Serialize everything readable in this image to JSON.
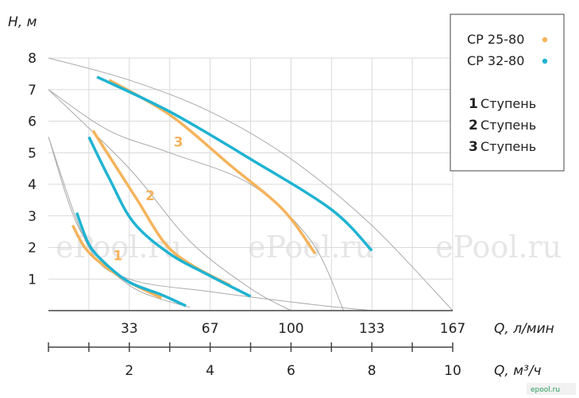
{
  "chart_data": {
    "type": "line",
    "ylabel": "H, м",
    "xlabel_top": "Q, л/мин",
    "xlabel_bottom": "Q, м³/ч",
    "x_unit": "m3/h",
    "xlim": [
      0,
      10
    ],
    "ylim": [
      0,
      8
    ],
    "y_ticks": [
      "1",
      "2",
      "3",
      "4",
      "5",
      "6",
      "7",
      "8"
    ],
    "x_ticks_top": [
      {
        "x": 2,
        "label": "33"
      },
      {
        "x": 4,
        "label": "67"
      },
      {
        "x": 6,
        "label": "100"
      },
      {
        "x": 8,
        "label": "133"
      },
      {
        "x": 10,
        "label": "167"
      }
    ],
    "x_ticks_bottom": [
      {
        "x": 2,
        "label": "2"
      },
      {
        "x": 4,
        "label": "4"
      },
      {
        "x": 6,
        "label": "6"
      },
      {
        "x": 8,
        "label": "8"
      },
      {
        "x": 10,
        "label": "10"
      }
    ],
    "grid": true,
    "legend_position": "top-right",
    "legend": {
      "models": [
        {
          "label": "CP 25-80",
          "color": "#f5b35b"
        },
        {
          "label": "CP 32-80",
          "color": "#1fb3d2"
        }
      ],
      "stages": [
        {
          "num": "1",
          "label": "Ступень"
        },
        {
          "num": "2",
          "label": "Ступень"
        },
        {
          "num": "3",
          "label": "Ступень"
        }
      ]
    },
    "series": [
      {
        "model": "CP 25-80",
        "stage": "1",
        "color": "#f5b35b",
        "points": [
          [
            0.6,
            2.7
          ],
          [
            0.9,
            2.0
          ],
          [
            1.3,
            1.5
          ],
          [
            2.0,
            0.9
          ],
          [
            2.8,
            0.4
          ]
        ]
      },
      {
        "model": "CP 32-80",
        "stage": "1",
        "color": "#1fb3d2",
        "points": [
          [
            0.7,
            3.1
          ],
          [
            1.0,
            2.1
          ],
          [
            1.4,
            1.5
          ],
          [
            2.0,
            0.9
          ],
          [
            2.8,
            0.5
          ],
          [
            3.4,
            0.15
          ]
        ]
      },
      {
        "model": "CP 25-80",
        "stage": "2",
        "color": "#f5b35b",
        "points": [
          [
            1.1,
            5.7
          ],
          [
            1.6,
            4.7
          ],
          [
            2.2,
            3.5
          ],
          [
            2.9,
            2.1
          ],
          [
            3.6,
            1.4
          ],
          [
            4.5,
            0.8
          ]
        ]
      },
      {
        "model": "CP 32-80",
        "stage": "2",
        "color": "#1fb3d2",
        "points": [
          [
            1.0,
            5.5
          ],
          [
            1.5,
            4.2
          ],
          [
            2.1,
            2.8
          ],
          [
            3.0,
            1.8
          ],
          [
            4.0,
            1.1
          ],
          [
            5.0,
            0.45
          ]
        ]
      },
      {
        "model": "CP 25-80",
        "stage": "3",
        "color": "#f5b35b",
        "points": [
          [
            1.5,
            7.3
          ],
          [
            3.0,
            6.2
          ],
          [
            4.5,
            4.6
          ],
          [
            5.8,
            3.2
          ],
          [
            6.6,
            1.8
          ]
        ]
      },
      {
        "model": "CP 32-80",
        "stage": "3",
        "color": "#1fb3d2",
        "points": [
          [
            1.2,
            7.4
          ],
          [
            3.0,
            6.3
          ],
          [
            5.0,
            4.8
          ],
          [
            7.0,
            3.2
          ],
          [
            8.0,
            1.9
          ]
        ]
      }
    ],
    "reference_curves": [
      {
        "color": "#aaaaaa",
        "points": [
          [
            0,
            8.0
          ],
          [
            2.0,
            7.3
          ],
          [
            4.0,
            6.3
          ],
          [
            6.0,
            4.8
          ],
          [
            8.0,
            2.7
          ],
          [
            10.0,
            0
          ]
        ]
      },
      {
        "color": "#aaaaaa",
        "points": [
          [
            0,
            7.0
          ],
          [
            1.5,
            5.7
          ],
          [
            3.0,
            5.0
          ],
          [
            5.0,
            4.0
          ],
          [
            6.5,
            2.2
          ],
          [
            7.3,
            0
          ]
        ]
      },
      {
        "color": "#aaaaaa",
        "points": [
          [
            0,
            7.0
          ],
          [
            2.0,
            4.5
          ],
          [
            3.5,
            2.2
          ],
          [
            5.0,
            0.7
          ],
          [
            6.0,
            0
          ]
        ]
      },
      {
        "color": "#aaaaaa",
        "points": [
          [
            0,
            5.5
          ],
          [
            0.8,
            2.5
          ],
          [
            2.0,
            0.8
          ],
          [
            3.5,
            0.1
          ]
        ]
      },
      {
        "color": "#aaaaaa",
        "points": [
          [
            0,
            5.5
          ],
          [
            1.0,
            2.0
          ],
          [
            2.0,
            1.0
          ],
          [
            4.0,
            0.6
          ],
          [
            6.5,
            0.2
          ],
          [
            8.0,
            0
          ]
        ]
      }
    ],
    "stage_labels": [
      {
        "text": "1",
        "x": 1.6,
        "y": 1.6,
        "color": "#f5b35b"
      },
      {
        "text": "2",
        "x": 2.4,
        "y": 3.5,
        "color": "#f5b35b"
      },
      {
        "text": "3",
        "x": 3.1,
        "y": 5.2,
        "color": "#f5b35b"
      }
    ],
    "watermarks": [
      "ePool.ru",
      "ePool.ru",
      "ePool.ru"
    ],
    "corner_mark": "epool.ru"
  }
}
